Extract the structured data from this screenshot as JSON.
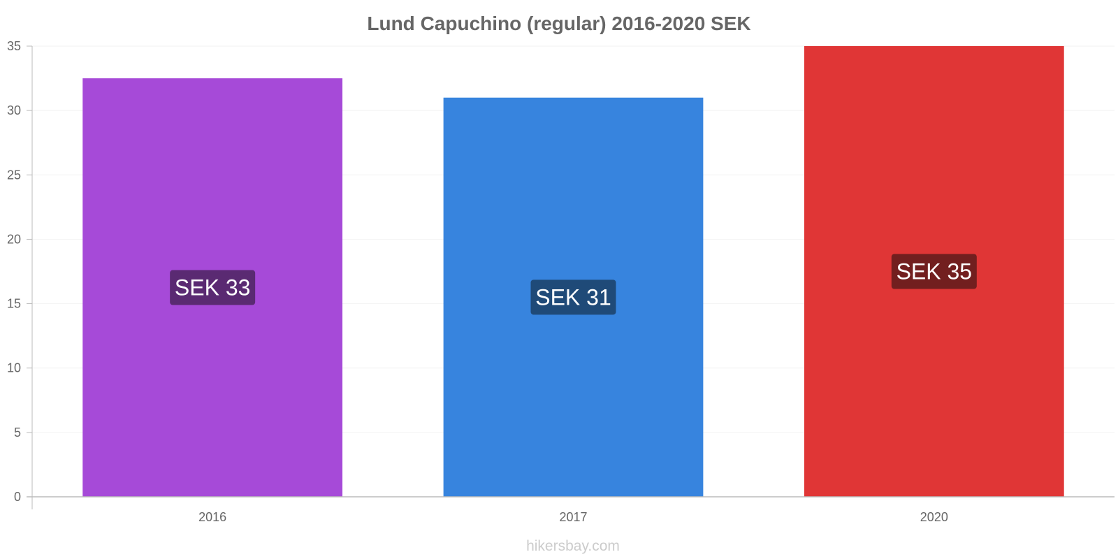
{
  "chart_data": {
    "type": "bar",
    "title": "Lund Capuchino (regular) 2016-2020 SEK",
    "categories": [
      "2016",
      "2017",
      "2020"
    ],
    "values": [
      32.5,
      31,
      35
    ],
    "data_labels": [
      "SEK 33",
      "SEK 31",
      "SEK 35"
    ],
    "colors": [
      "#a64ad8",
      "#3784de",
      "#e03636"
    ],
    "label_bg_colors": [
      "#5a2a72",
      "#1f4a78",
      "#721f1f"
    ],
    "ylim": [
      0,
      35
    ],
    "yticks": [
      0,
      5,
      10,
      15,
      20,
      25,
      30,
      35
    ],
    "xlabel": "",
    "ylabel": "",
    "grid": true,
    "legend": "none"
  },
  "watermark": "hikersbay.com"
}
